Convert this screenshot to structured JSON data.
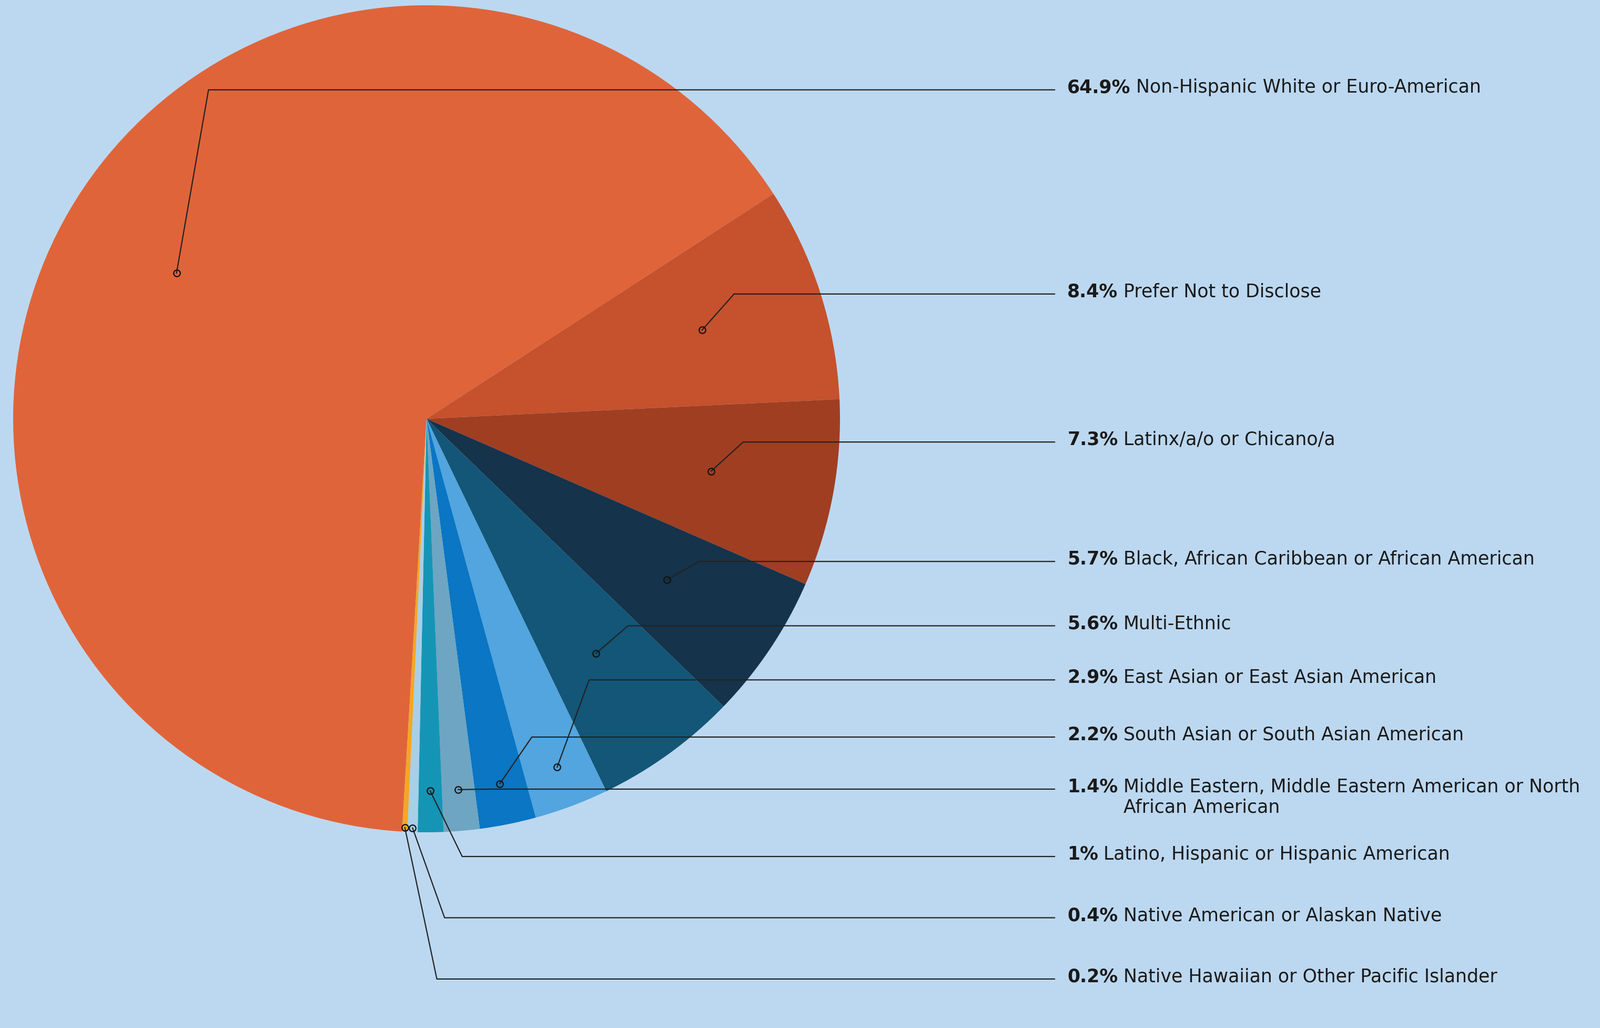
{
  "chart_data": {
    "type": "pie",
    "categories": [
      "Non-Hispanic White or Euro-American",
      "Prefer Not to Disclose",
      "Latinx/a/o or Chicano/a",
      "Black, African Caribbean or African American",
      "Multi-Ethnic",
      "East Asian or East Asian American",
      "South Asian or South Asian American",
      "Middle Eastern, Middle Eastern American or North African American",
      "Latino, Hispanic or Hispanic American",
      "Native American or Alaskan Native",
      "Native Hawaiian or Other Pacific Islander"
    ],
    "values": [
      64.9,
      8.4,
      7.3,
      5.7,
      5.6,
      2.9,
      2.2,
      1.4,
      1,
      0.4,
      0.2
    ],
    "value_labels": [
      "64.9%",
      "8.4%",
      "7.3%",
      "5.7%",
      "5.6%",
      "2.9%",
      "2.2%",
      "1.4%",
      "1%",
      "0.4%",
      "0.2%"
    ],
    "colors": [
      "#e0643a",
      "#c6512d",
      "#a03e22",
      "#15334a",
      "#135677",
      "#52a5de",
      "#0a76c4",
      "#6ea5c2",
      "#1595b5",
      "#a8cfe8",
      "#f5a623"
    ],
    "data_labels": true
  }
}
